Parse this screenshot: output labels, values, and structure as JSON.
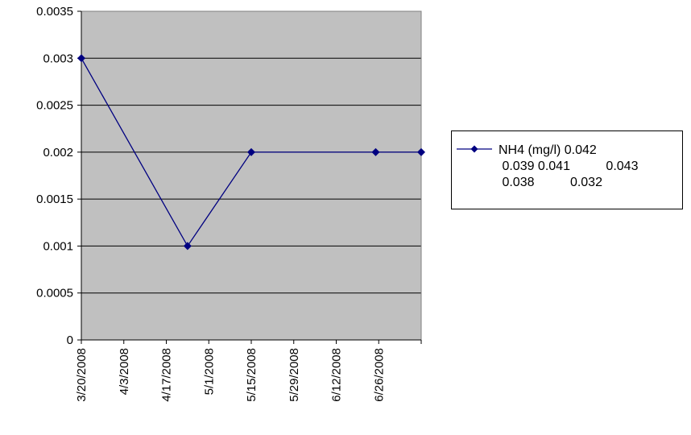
{
  "chart_data": {
    "type": "line",
    "title": "",
    "xlabel": "",
    "ylabel": "",
    "x_tick_labels": [
      "3/20/2008",
      "4/3/2008",
      "4/17/2008",
      "5/1/2008",
      "5/15/2008",
      "5/29/2008",
      "6/12/2008",
      "6/26/2008"
    ],
    "x_range": [
      "2008-03-20",
      "2008-07-10"
    ],
    "y_tick_labels": [
      "0",
      "0.0005",
      "0.001",
      "0.0015",
      "0.002",
      "0.0025",
      "0.003",
      "0.0035"
    ],
    "ylim": [
      0,
      0.0035
    ],
    "grid": "horizontal major gridlines",
    "plot_background": "#c0c0c0",
    "legend_position": "right",
    "series": [
      {
        "name": "NH4 (mg/l) 0.042\n 0.039 0.041          0.043\n 0.038          0.032",
        "color": "#000080",
        "marker": "diamond",
        "points": [
          {
            "x": "2008-03-20",
            "y": 0.003
          },
          {
            "x": "2008-04-24",
            "y": 0.001
          },
          {
            "x": "2008-05-15",
            "y": 0.002
          },
          {
            "x": "2008-06-25",
            "y": 0.002
          },
          {
            "x": "2008-07-10",
            "y": 0.002
          }
        ]
      }
    ]
  }
}
